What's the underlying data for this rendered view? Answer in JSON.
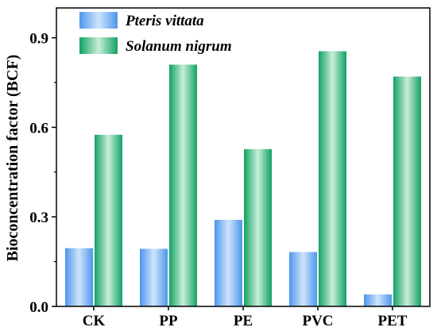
{
  "chart_data": {
    "type": "bar",
    "categories": [
      "CK",
      "PP",
      "PE",
      "PVC",
      "PET"
    ],
    "series": [
      {
        "name": "Pteris vittata",
        "values": [
          0.195,
          0.193,
          0.29,
          0.182,
          0.04
        ],
        "color": "#6aaaf0"
      },
      {
        "name": "Solanum nigrum",
        "values": [
          0.575,
          0.81,
          0.527,
          0.855,
          0.77
        ],
        "color": "#17a56a"
      }
    ],
    "title": "",
    "xlabel": "",
    "ylabel": "Bioconcentration factor (BCF)",
    "ylim": [
      0,
      1.0
    ],
    "yticks": [
      0.0,
      0.3,
      0.6,
      0.9
    ],
    "ytick_labels": [
      "0.0",
      "0.3",
      "0.6",
      "0.9"
    ],
    "grid": false,
    "legend_position": "top-left"
  }
}
